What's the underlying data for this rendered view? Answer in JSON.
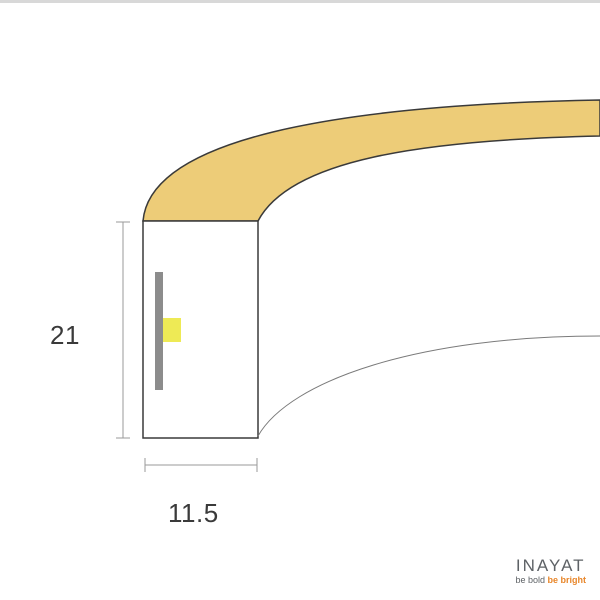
{
  "dimensions": {
    "height": "21",
    "width": "11.5"
  },
  "brand": {
    "name": "INAYAT",
    "tagline_part1": "be bold ",
    "tagline_part2": "be bright"
  },
  "colors": {
    "glow": "#EDCC78",
    "outline": "#3a3a3a",
    "strip": "#8c8c8c",
    "led": "#EEEA55",
    "dimension_line": "#9a9a9a",
    "accent": "#e8862a"
  }
}
